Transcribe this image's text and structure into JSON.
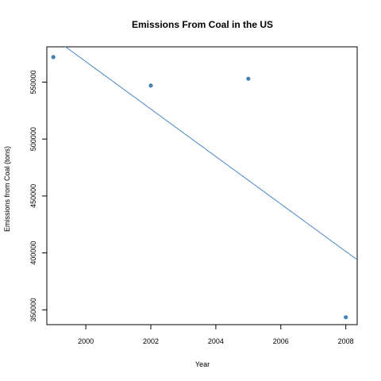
{
  "chart_data": {
    "type": "scatter",
    "title": "Emissions From Coal in the US",
    "xlabel": "Year",
    "ylabel": "Emissions from Coal (tons)",
    "xlim": [
      1998.8,
      2008.35
    ],
    "ylim": [
      337000,
      581000
    ],
    "xticks": [
      2000,
      2002,
      2004,
      2006,
      2008
    ],
    "xtick_labels": [
      "2000",
      "2002",
      "2004",
      "2006",
      "2008"
    ],
    "yticks": [
      350000,
      400000,
      450000,
      500000,
      550000
    ],
    "ytick_labels": [
      "350000",
      "400000",
      "450000",
      "500000",
      "550000"
    ],
    "grid": false,
    "series": [
      {
        "type": "scatter",
        "x": [
          1999,
          2002,
          2005,
          2008
        ],
        "y": [
          572000,
          547000,
          553000,
          343500
        ]
      }
    ],
    "trend_line": {
      "x": [
        1998.8,
        2008.35
      ],
      "y": [
        593000,
        394000
      ]
    },
    "colors": {
      "points": "#4682b4",
      "line": "#4a86c5",
      "axes": "#000000"
    }
  }
}
